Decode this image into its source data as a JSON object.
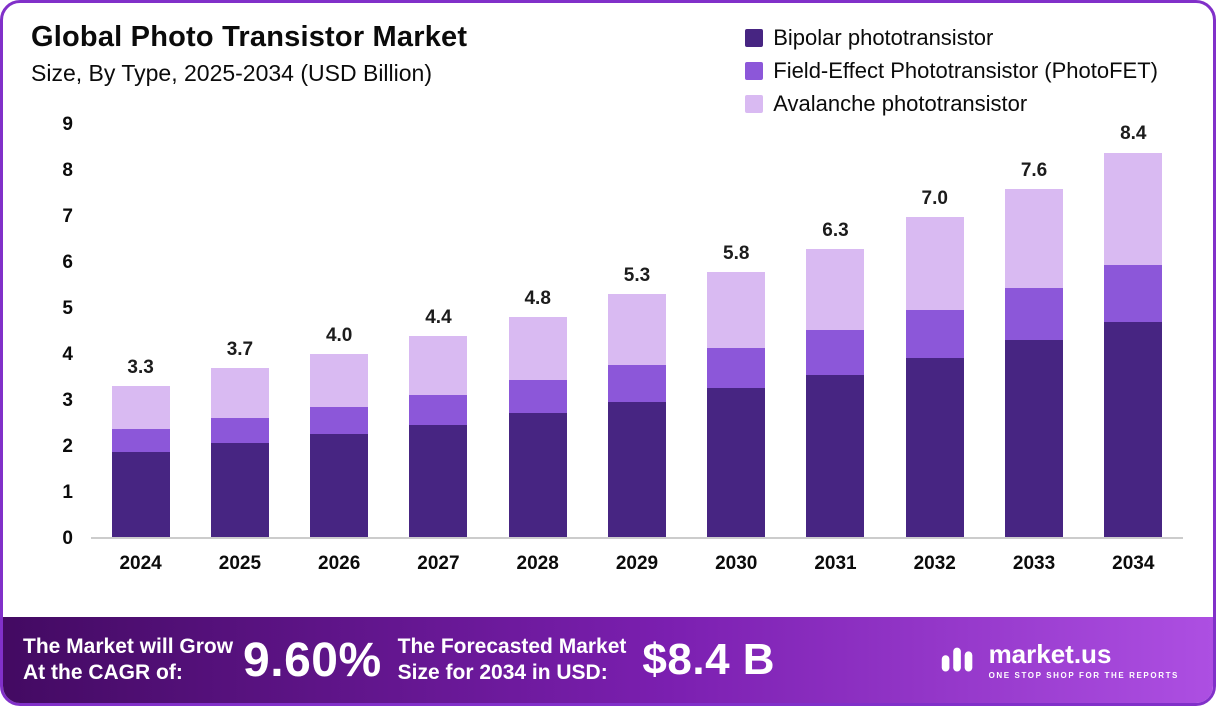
{
  "header": {
    "title": "Global Photo Transistor Market",
    "subtitle": "Size, By Type, 2025-2034 (USD Billion)"
  },
  "chart_data": {
    "type": "bar",
    "stacked": true,
    "title": "Global Photo Transistor Market Size, By Type, 2025-2034 (USD Billion)",
    "categories": [
      "2024",
      "2025",
      "2026",
      "2027",
      "2028",
      "2029",
      "2030",
      "2031",
      "2032",
      "2033",
      "2034"
    ],
    "series": [
      {
        "name": "Bipolar phototransistor",
        "color": "#472582",
        "values": [
          1.85,
          2.05,
          2.25,
          2.45,
          2.7,
          2.95,
          3.25,
          3.55,
          3.9,
          4.3,
          4.7
        ]
      },
      {
        "name": "Field-Effect Phototransistor (PhotoFET)",
        "color": "#8c57d9",
        "values": [
          0.5,
          0.55,
          0.6,
          0.65,
          0.72,
          0.8,
          0.87,
          0.97,
          1.07,
          1.15,
          1.25
        ]
      },
      {
        "name": "Avalanche phototransistor",
        "color": "#d9baf2",
        "values": [
          0.95,
          1.1,
          1.15,
          1.3,
          1.38,
          1.55,
          1.68,
          1.78,
          2.03,
          2.15,
          2.45
        ]
      }
    ],
    "totals": [
      3.3,
      3.7,
      4.0,
      4.4,
      4.8,
      5.3,
      5.8,
      6.3,
      7.0,
      7.6,
      8.4
    ],
    "totals_display": [
      "3.3",
      "3.7",
      "4.0",
      "4.4",
      "4.8",
      "5.3",
      "5.8",
      "6.3",
      "7.0",
      "7.6",
      "8.4"
    ],
    "ylim": [
      0,
      9
    ],
    "yticks": [
      0,
      1,
      2,
      3,
      4,
      5,
      6,
      7,
      8,
      9
    ],
    "legend_position": "top-right",
    "grid": false
  },
  "banner": {
    "cagr_label_line1": "The Market will Grow",
    "cagr_label_line2": "At the CAGR of:",
    "cagr_value": "9.60%",
    "forecast_label_line1": "The Forecasted Market",
    "forecast_label_line2": "Size for 2034 in USD:",
    "forecast_value": "$8.4 B",
    "logo_text": "market.us",
    "logo_tagline": "ONE STOP SHOP FOR THE REPORTS"
  },
  "colors": {
    "accent_border": "#8130c9",
    "banner_gradient_start": "#430a62",
    "banner_gradient_mid": "#7b1fb0",
    "banner_gradient_end": "#ad4fe2"
  }
}
